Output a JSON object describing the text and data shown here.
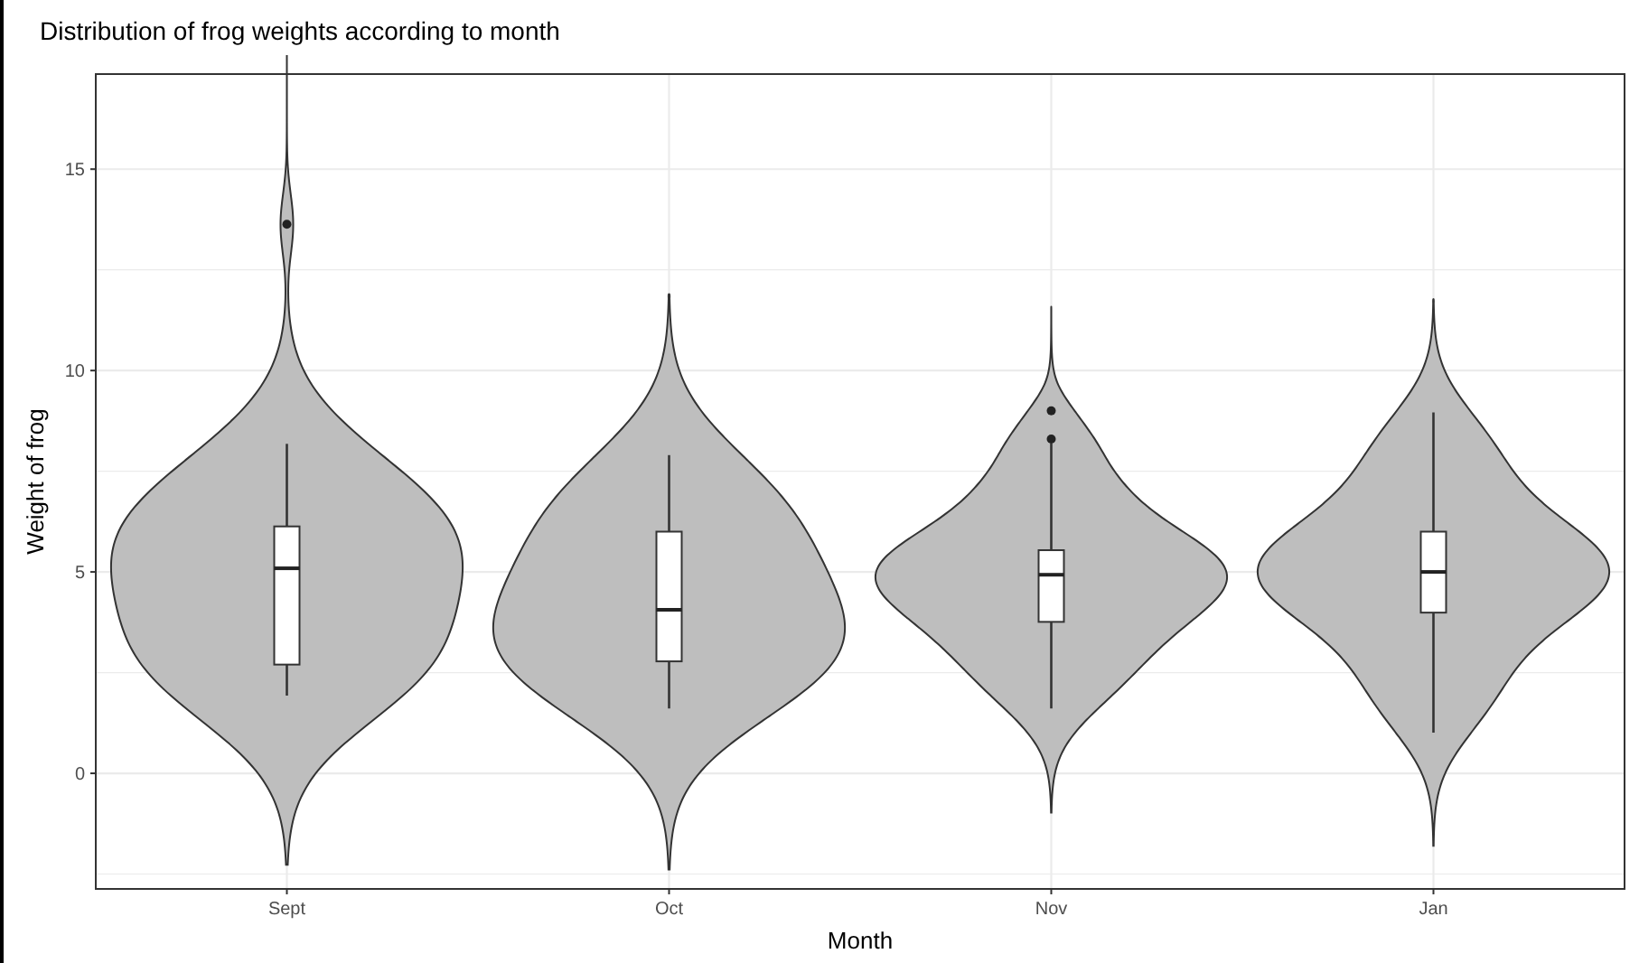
{
  "chart_data": {
    "type": "box",
    "title": "Distribution of frog weights according to month",
    "xlabel": "Month",
    "ylabel": "Weight of frog",
    "categories": [
      "Sept",
      "Oct",
      "Nov",
      "Jan"
    ],
    "boxes": [
      {
        "low": 1.93,
        "q1": 2.7,
        "median": 5.09,
        "q3": 6.13,
        "high": 8.18,
        "outliers": [
          13.63
        ]
      },
      {
        "low": 1.61,
        "q1": 2.78,
        "median": 4.06,
        "q3": 6.0,
        "high": 7.9
      },
      {
        "low": 1.61,
        "q1": 3.76,
        "median": 4.93,
        "q3": 5.54,
        "high": 8.2,
        "outliers": [
          9.0,
          8.3
        ]
      },
      {
        "low": 1.01,
        "q1": 3.99,
        "median": 5.0,
        "q3": 6.0,
        "high": 8.96
      }
    ],
    "ylim": [
      -2.87,
      17.36
    ],
    "yticks": [
      0,
      5,
      10,
      15
    ],
    "grid": true
  }
}
